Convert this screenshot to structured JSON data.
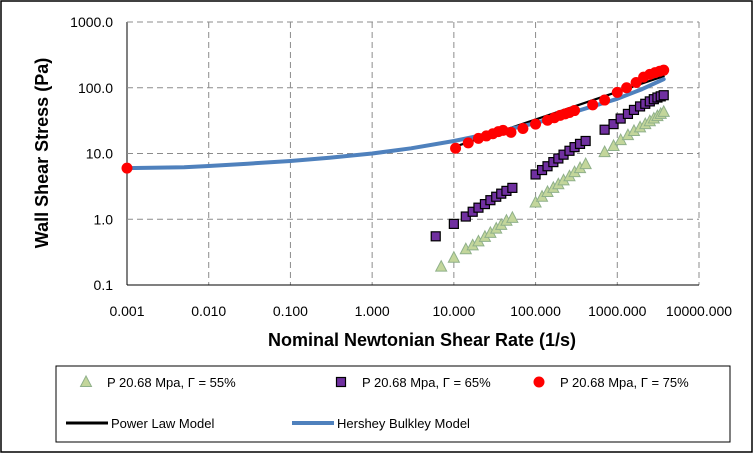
{
  "chart_data": {
    "type": "scatter",
    "xlabel": "Nominal Newtonian Shear Rate (1/s)",
    "ylabel": "Wall Shear Stress (Pa)",
    "x_scale": "log",
    "y_scale": "log",
    "xlim": [
      0.001,
      10000
    ],
    "ylim": [
      0.1,
      1000
    ],
    "x_tick_labels": [
      "0.001",
      "0.010",
      "0.100",
      "1.000",
      "10.000",
      "100.000",
      "1000.000",
      "10000.000"
    ],
    "x_tick_values": [
      0.001,
      0.01,
      0.1,
      1,
      10,
      100,
      1000,
      10000
    ],
    "y_tick_labels": [
      "0.1",
      "1.0",
      "10.0",
      "100.0",
      "1000.0"
    ],
    "y_tick_values": [
      0.1,
      1,
      10,
      100,
      1000
    ],
    "grid": true,
    "legend_position": "bottom",
    "series": [
      {
        "name": "P  20.68  Mpa, Γ = 55%",
        "kind": "points",
        "marker": "triangle",
        "color": "#c3d69b",
        "edge": "#8fb08a",
        "points": [
          [
            7,
            0.19
          ],
          [
            10,
            0.26
          ],
          [
            14,
            0.35
          ],
          [
            17,
            0.4
          ],
          [
            20,
            0.46
          ],
          [
            24,
            0.54
          ],
          [
            28,
            0.62
          ],
          [
            33,
            0.72
          ],
          [
            38,
            0.82
          ],
          [
            44,
            0.95
          ],
          [
            52,
            1.05
          ],
          [
            100,
            1.8
          ],
          [
            120,
            2.2
          ],
          [
            140,
            2.6
          ],
          [
            165,
            3.0
          ],
          [
            190,
            3.4
          ],
          [
            220,
            3.9
          ],
          [
            260,
            4.5
          ],
          [
            300,
            5.2
          ],
          [
            350,
            6.0
          ],
          [
            410,
            6.9
          ],
          [
            700,
            10.5
          ],
          [
            900,
            13
          ],
          [
            1100,
            16
          ],
          [
            1350,
            19
          ],
          [
            1600,
            22
          ],
          [
            1900,
            25
          ],
          [
            2200,
            28
          ],
          [
            2500,
            31
          ],
          [
            2800,
            34
          ],
          [
            3100,
            37
          ],
          [
            3400,
            40
          ],
          [
            3700,
            43
          ]
        ]
      },
      {
        "name": "P  20.68  Mpa, Γ = 65%",
        "kind": "points",
        "marker": "square",
        "color": "#7030a0",
        "edge": "#000000",
        "points": [
          [
            6,
            0.55
          ],
          [
            10,
            0.85
          ],
          [
            14,
            1.1
          ],
          [
            17,
            1.3
          ],
          [
            20,
            1.5
          ],
          [
            24,
            1.7
          ],
          [
            28,
            1.95
          ],
          [
            33,
            2.2
          ],
          [
            38,
            2.45
          ],
          [
            44,
            2.7
          ],
          [
            52,
            3.0
          ],
          [
            100,
            4.8
          ],
          [
            120,
            5.6
          ],
          [
            140,
            6.4
          ],
          [
            165,
            7.4
          ],
          [
            190,
            8.4
          ],
          [
            220,
            9.6
          ],
          [
            260,
            11
          ],
          [
            300,
            12.5
          ],
          [
            350,
            14
          ],
          [
            410,
            15.5
          ],
          [
            700,
            23
          ],
          [
            900,
            28
          ],
          [
            1100,
            34
          ],
          [
            1350,
            40
          ],
          [
            1600,
            46
          ],
          [
            1900,
            52
          ],
          [
            2200,
            57
          ],
          [
            2500,
            62
          ],
          [
            2800,
            67
          ],
          [
            3100,
            71
          ],
          [
            3400,
            74
          ],
          [
            3700,
            77
          ]
        ]
      },
      {
        "name": "P  20.68  Mpa, Γ = 75%",
        "kind": "points",
        "marker": "circle",
        "color": "#ff0000",
        "edge": "#ff0000",
        "points": [
          [
            0.001,
            6.0
          ],
          [
            10.5,
            12
          ],
          [
            15,
            14.5
          ],
          [
            20,
            17
          ],
          [
            25,
            18.5
          ],
          [
            30,
            20
          ],
          [
            35,
            21.5
          ],
          [
            40,
            22.5
          ],
          [
            50,
            21
          ],
          [
            70,
            24
          ],
          [
            100,
            28
          ],
          [
            140,
            32
          ],
          [
            170,
            35
          ],
          [
            200,
            38
          ],
          [
            230,
            40
          ],
          [
            260,
            42
          ],
          [
            300,
            45
          ],
          [
            500,
            55
          ],
          [
            700,
            65
          ],
          [
            1000,
            85
          ],
          [
            1300,
            100
          ],
          [
            1700,
            120
          ],
          [
            2100,
            145
          ],
          [
            2500,
            160
          ],
          [
            2900,
            170
          ],
          [
            3300,
            178
          ],
          [
            3700,
            185
          ]
        ]
      },
      {
        "name": "Power Law Model",
        "kind": "line",
        "color": "#000000",
        "points": [
          [
            10,
            12.5
          ],
          [
            3700,
            150
          ]
        ]
      },
      {
        "name": "Hershey Bulkley Model",
        "kind": "line",
        "color": "#4f81bd",
        "points": [
          [
            0.001,
            6.0
          ],
          [
            0.002,
            6.05
          ],
          [
            0.005,
            6.2
          ],
          [
            0.01,
            6.45
          ],
          [
            0.03,
            7.0
          ],
          [
            0.1,
            7.7
          ],
          [
            0.3,
            8.6
          ],
          [
            1,
            10
          ],
          [
            3,
            12
          ],
          [
            10,
            15.5
          ],
          [
            30,
            20.5
          ],
          [
            100,
            29
          ],
          [
            300,
            43
          ],
          [
            1000,
            68
          ],
          [
            2000,
            95
          ],
          [
            3700,
            135
          ]
        ]
      }
    ]
  }
}
